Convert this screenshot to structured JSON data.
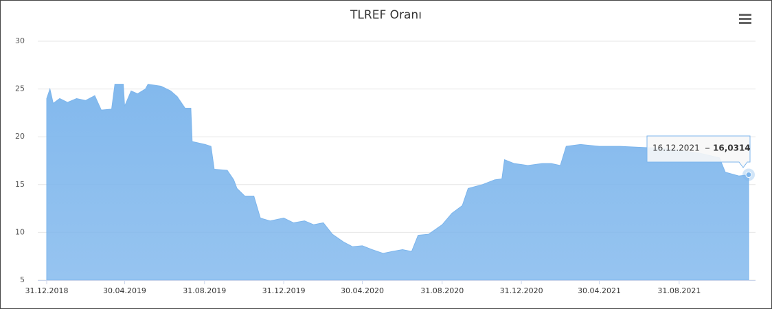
{
  "chart_data": {
    "type": "area",
    "title": "TLREF Oranı",
    "color": "#7cb5ec",
    "x": [
      "31.12.2018",
      "05.01.2019",
      "10.01.2019",
      "20.01.2019",
      "01.02.2019",
      "15.02.2019",
      "01.03.2019",
      "15.03.2019",
      "25.03.2019",
      "10.04.2019",
      "15.04.2019",
      "28.04.2019",
      "30.04.2019",
      "10.05.2019",
      "20.05.2019",
      "01.06.2019",
      "05.06.2019",
      "25.06.2019",
      "10.07.2019",
      "20.07.2019",
      "01.08.2019",
      "10.08.2019",
      "12.08.2019",
      "01.09.2019",
      "10.09.2019",
      "15.09.2019",
      "05.10.2019",
      "15.10.2019",
      "20.10.2019",
      "01.11.2019",
      "15.11.2019",
      "25.11.2019",
      "10.12.2019",
      "31.12.2019",
      "15.01.2020",
      "01.02.2020",
      "15.02.2020",
      "01.03.2020",
      "15.03.2020",
      "01.04.2020",
      "15.04.2020",
      "30.04.2020",
      "15.05.2020",
      "01.06.2020",
      "15.06.2020",
      "01.07.2020",
      "15.07.2020",
      "25.07.2020",
      "10.08.2020",
      "31.08.2020",
      "15.09.2020",
      "01.10.2020",
      "10.10.2020",
      "01.11.2020",
      "20.11.2020",
      "01.12.2020",
      "05.12.2020",
      "20.12.2020",
      "10.01.2021",
      "01.02.2021",
      "15.02.2021",
      "01.03.2021",
      "10.03.2021",
      "01.04.2021",
      "30.04.2021",
      "01.06.2021",
      "01.07.2021",
      "01.08.2021",
      "31.08.2021",
      "01.10.2021",
      "01.11.2021",
      "10.11.2021",
      "01.12.2021",
      "16.12.2021"
    ],
    "values": [
      24.0,
      25.0,
      23.5,
      24.0,
      23.6,
      24.0,
      23.8,
      24.3,
      22.8,
      22.9,
      25.5,
      25.5,
      23.2,
      24.8,
      24.5,
      25.0,
      25.5,
      25.3,
      24.8,
      24.2,
      23.0,
      23.0,
      19.5,
      19.2,
      19.0,
      16.6,
      16.5,
      15.5,
      14.6,
      13.8,
      13.8,
      11.5,
      11.2,
      11.5,
      11.0,
      11.2,
      10.8,
      11.0,
      9.8,
      9.0,
      8.5,
      8.6,
      8.2,
      7.8,
      8.0,
      8.2,
      8.0,
      9.7,
      9.8,
      10.8,
      12.0,
      12.8,
      14.6,
      15.0,
      15.5,
      15.6,
      17.6,
      17.2,
      17.0,
      17.2,
      17.2,
      17.0,
      19.0,
      19.2,
      19.0,
      19.0,
      18.9,
      18.8,
      18.6,
      18.3,
      17.8,
      16.3,
      15.9,
      16.0314
    ],
    "xlim": [
      "31.12.2018",
      "16.12.2021"
    ],
    "xticks": [
      "31.12.2018",
      "30.04.2019",
      "31.08.2019",
      "31.12.2019",
      "30.04.2020",
      "31.08.2020",
      "31.12.2020",
      "30.04.2021",
      "31.08.2021"
    ],
    "ylim": [
      5,
      30
    ],
    "yticks": [
      5,
      10,
      15,
      20,
      25,
      30
    ],
    "grid": true,
    "tooltip": {
      "x": "16.12.2021",
      "value": 16.0314,
      "value_label": "16,0314"
    }
  }
}
